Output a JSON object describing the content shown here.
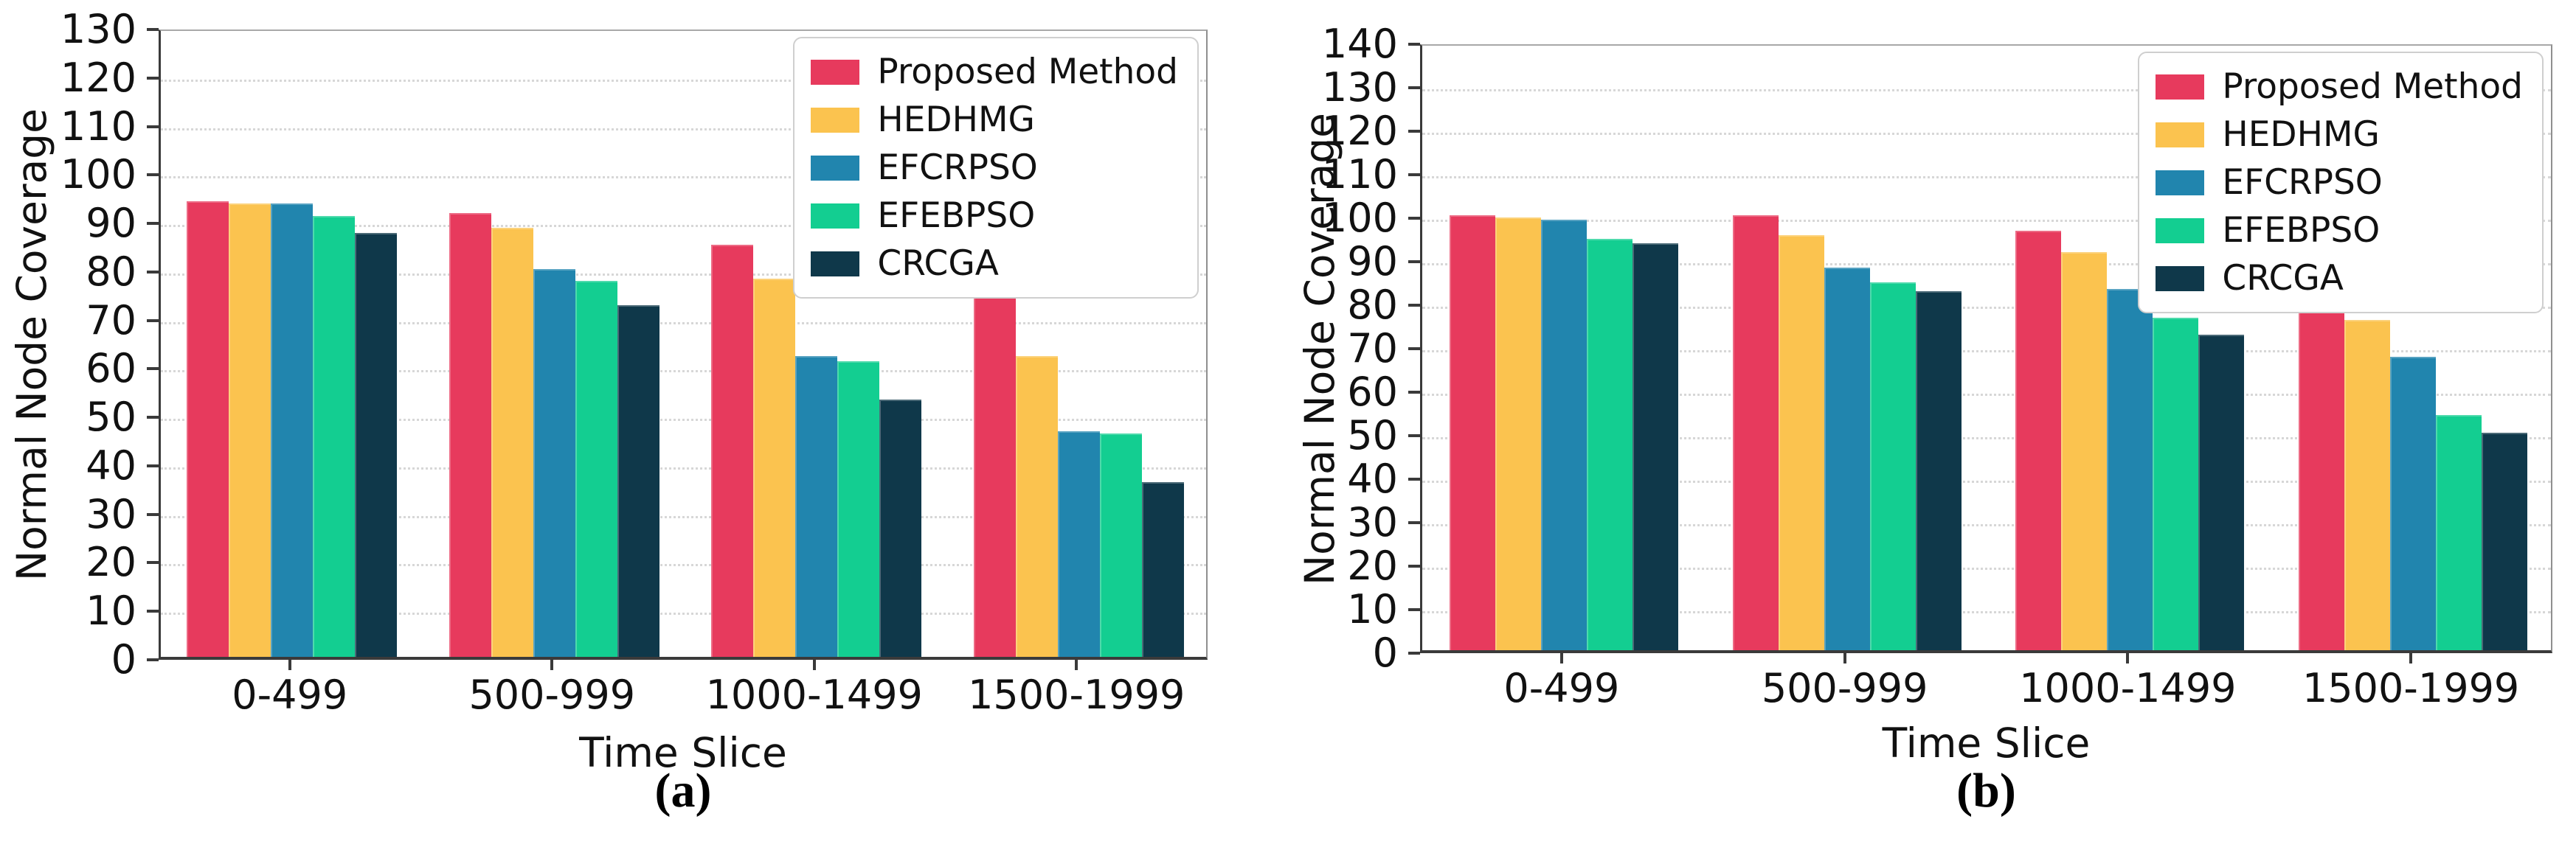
{
  "figure": {
    "background": "#ffffff",
    "text_color": "#111111",
    "gridline_color": "#d7d7d7",
    "axis_color": "#3a3a3a"
  },
  "chart_data": [
    {
      "type": "bar",
      "caption": "(a)",
      "xlabel": "Time Slice",
      "ylabel": "Normal Node Coverage",
      "ylim": [
        0,
        130
      ],
      "ytick_step": 10,
      "grid": "dotted-horizontal",
      "legend_position": "top-right",
      "categories": [
        "0-499",
        "500-999",
        "1000-1499",
        "1500-1999"
      ],
      "series": [
        {
          "name": "Proposed Method",
          "color": "#E73A5D",
          "values": [
            94,
            91.5,
            85,
            75.5
          ]
        },
        {
          "name": "HEDHMG",
          "color": "#FBC34F",
          "values": [
            93.5,
            88.5,
            78,
            62
          ]
        },
        {
          "name": "EFCRPSO",
          "color": "#2185AE",
          "values": [
            93.5,
            80,
            62,
            46.5
          ]
        },
        {
          "name": "EFEBPSO",
          "color": "#13CE91",
          "values": [
            91,
            77.5,
            61,
            46
          ]
        },
        {
          "name": "CRCGA",
          "color": "#0F384A",
          "values": [
            87.5,
            72.5,
            53,
            36
          ]
        }
      ]
    },
    {
      "type": "bar",
      "caption": "(b)",
      "xlabel": "Time Slice",
      "ylabel": "Normal Node Coverage",
      "ylim": [
        0,
        140
      ],
      "ytick_step": 10,
      "grid": "dotted-horizontal",
      "legend_position": "top-right",
      "categories": [
        "0-499",
        "500-999",
        "1000-1499",
        "1500-1999"
      ],
      "series": [
        {
          "name": "Proposed Method",
          "color": "#E73A5D",
          "values": [
            100,
            100,
            96.5,
            86
          ]
        },
        {
          "name": "HEDHMG",
          "color": "#FBC34F",
          "values": [
            99.5,
            95.5,
            91.5,
            76
          ]
        },
        {
          "name": "EFCRPSO",
          "color": "#2185AE",
          "values": [
            99,
            88,
            83,
            67.5
          ]
        },
        {
          "name": "EFEBPSO",
          "color": "#13CE91",
          "values": [
            94.5,
            84.5,
            76.5,
            54
          ]
        },
        {
          "name": "CRCGA",
          "color": "#0F384A",
          "values": [
            93.5,
            82.5,
            72.5,
            50
          ]
        }
      ]
    }
  ]
}
